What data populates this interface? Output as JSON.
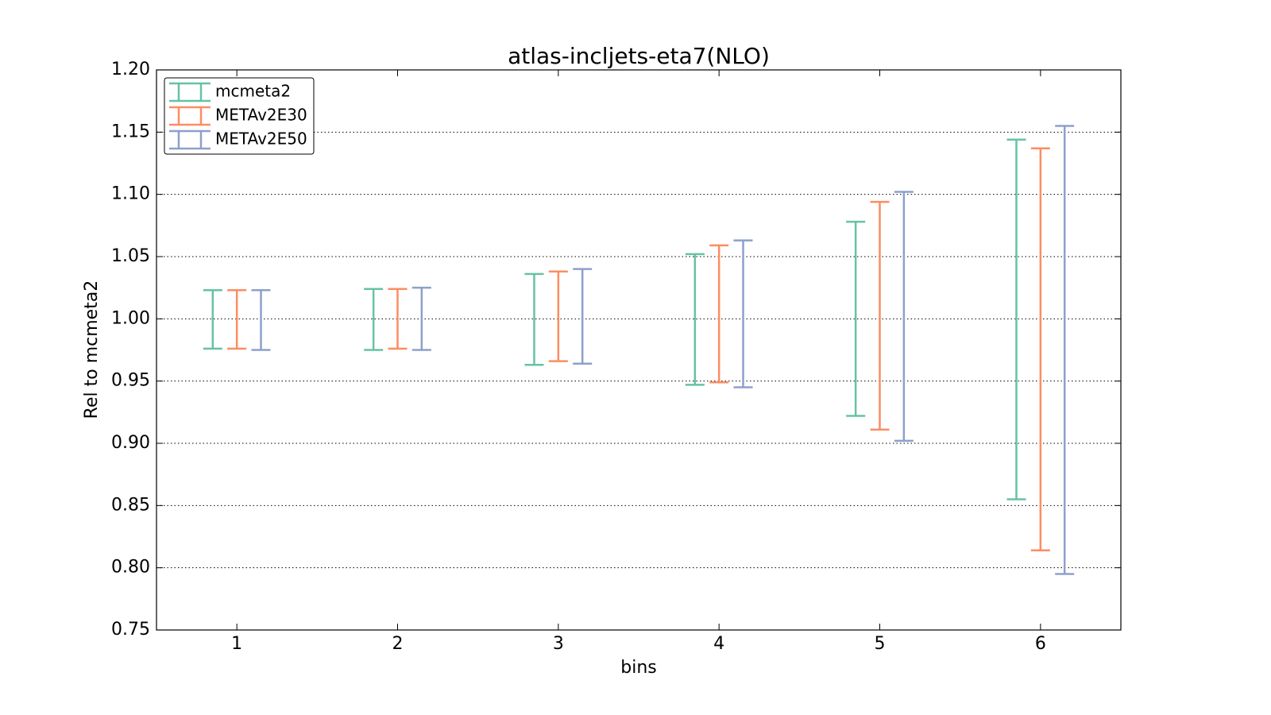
{
  "chart_data": {
    "type": "errorbar",
    "title": "atlas-incljets-eta7(NLO)",
    "xlabel": "bins",
    "ylabel": "Rel to mcmeta2",
    "x": [
      1,
      2,
      3,
      4,
      5,
      6
    ],
    "xlim": [
      0.5,
      6.5
    ],
    "xticks": [
      1,
      2,
      3,
      4,
      5,
      6
    ],
    "ylim": [
      0.75,
      1.2
    ],
    "yticks": [
      0.75,
      {
        "value": 0.8,
        "label": "0.80"
      },
      0.85,
      {
        "value": 0.9,
        "label": "0.90"
      },
      0.95,
      {
        "value": 1,
        "label": "1.00"
      },
      1.05,
      {
        "value": 1.1,
        "label": "1.10"
      },
      1.15,
      {
        "value": 1.2,
        "label": "1.20"
      }
    ],
    "grid": true,
    "legend": "upper left",
    "series": [
      {
        "name": "mcmeta2",
        "color": "#66c2a5",
        "low": [
          0.976,
          0.975,
          0.963,
          0.947,
          0.922,
          0.855
        ],
        "high": [
          1.023,
          1.024,
          1.036,
          1.052,
          1.078,
          1.144
        ]
      },
      {
        "name": "METAv2E30",
        "color": "#fc8d62",
        "low": [
          0.976,
          0.976,
          0.966,
          0.949,
          0.911,
          0.814
        ],
        "high": [
          1.023,
          1.024,
          1.038,
          1.059,
          1.094,
          1.137
        ]
      },
      {
        "name": "METAv2E50",
        "color": "#8da0cb",
        "low": [
          0.975,
          0.975,
          0.964,
          0.945,
          0.902,
          0.795
        ],
        "high": [
          1.023,
          1.025,
          1.04,
          1.063,
          1.102,
          1.155
        ]
      }
    ]
  }
}
